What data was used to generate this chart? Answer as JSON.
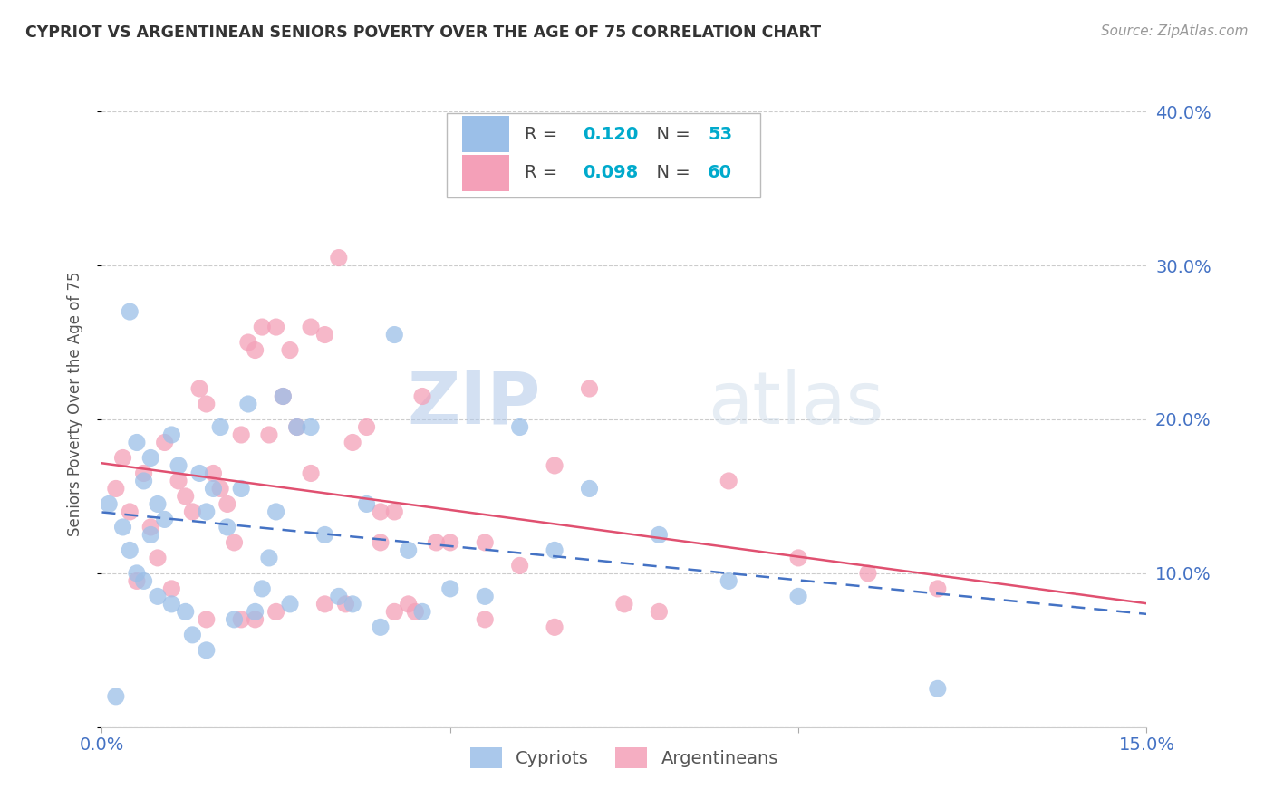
{
  "title": "CYPRIOT VS ARGENTINEAN SENIORS POVERTY OVER THE AGE OF 75 CORRELATION CHART",
  "source": "Source: ZipAtlas.com",
  "ylabel": "Seniors Poverty Over the Age of 75",
  "xlim": [
    0.0,
    0.15
  ],
  "ylim": [
    0.0,
    0.42
  ],
  "cypriot_R": 0.12,
  "cypriot_N": 53,
  "argentinean_R": 0.098,
  "argentinean_N": 60,
  "cypriot_color": "#9bbfe8",
  "argentinean_color": "#f4a0b8",
  "trend_cypriot_color": "#4472c4",
  "trend_argentinean_color": "#e05070",
  "background_color": "#ffffff",
  "grid_color": "#cccccc",
  "axis_label_color": "#4472c4",
  "watermark_zip": "ZIP",
  "watermark_atlas": "atlas",
  "cypriot_x": [
    0.001,
    0.002,
    0.003,
    0.004,
    0.004,
    0.005,
    0.005,
    0.006,
    0.006,
    0.007,
    0.007,
    0.008,
    0.008,
    0.009,
    0.01,
    0.01,
    0.011,
    0.012,
    0.013,
    0.014,
    0.015,
    0.015,
    0.016,
    0.017,
    0.018,
    0.019,
    0.02,
    0.021,
    0.022,
    0.023,
    0.024,
    0.025,
    0.026,
    0.027,
    0.028,
    0.03,
    0.032,
    0.034,
    0.036,
    0.038,
    0.04,
    0.042,
    0.044,
    0.046,
    0.05,
    0.055,
    0.06,
    0.065,
    0.07,
    0.08,
    0.09,
    0.1,
    0.12
  ],
  "cypriot_y": [
    0.145,
    0.02,
    0.13,
    0.115,
    0.27,
    0.1,
    0.185,
    0.16,
    0.095,
    0.175,
    0.125,
    0.085,
    0.145,
    0.135,
    0.08,
    0.19,
    0.17,
    0.075,
    0.06,
    0.165,
    0.05,
    0.14,
    0.155,
    0.195,
    0.13,
    0.07,
    0.155,
    0.21,
    0.075,
    0.09,
    0.11,
    0.14,
    0.215,
    0.08,
    0.195,
    0.195,
    0.125,
    0.085,
    0.08,
    0.145,
    0.065,
    0.255,
    0.115,
    0.075,
    0.09,
    0.085,
    0.195,
    0.115,
    0.155,
    0.125,
    0.095,
    0.085,
    0.025
  ],
  "argentinean_x": [
    0.002,
    0.003,
    0.004,
    0.005,
    0.006,
    0.007,
    0.008,
    0.009,
    0.01,
    0.011,
    0.012,
    0.013,
    0.014,
    0.015,
    0.016,
    0.017,
    0.018,
    0.019,
    0.02,
    0.021,
    0.022,
    0.023,
    0.024,
    0.025,
    0.026,
    0.027,
    0.028,
    0.03,
    0.032,
    0.034,
    0.036,
    0.038,
    0.04,
    0.042,
    0.044,
    0.046,
    0.048,
    0.05,
    0.055,
    0.06,
    0.065,
    0.07,
    0.075,
    0.08,
    0.09,
    0.1,
    0.11,
    0.12,
    0.04,
    0.03,
    0.025,
    0.035,
    0.045,
    0.055,
    0.065,
    0.02,
    0.015,
    0.022,
    0.032,
    0.042
  ],
  "argentinean_y": [
    0.155,
    0.175,
    0.14,
    0.095,
    0.165,
    0.13,
    0.11,
    0.185,
    0.09,
    0.16,
    0.15,
    0.14,
    0.22,
    0.21,
    0.165,
    0.155,
    0.145,
    0.12,
    0.19,
    0.25,
    0.245,
    0.26,
    0.19,
    0.26,
    0.215,
    0.245,
    0.195,
    0.26,
    0.255,
    0.305,
    0.185,
    0.195,
    0.12,
    0.14,
    0.08,
    0.215,
    0.12,
    0.12,
    0.12,
    0.105,
    0.17,
    0.22,
    0.08,
    0.075,
    0.16,
    0.11,
    0.1,
    0.09,
    0.14,
    0.165,
    0.075,
    0.08,
    0.075,
    0.07,
    0.065,
    0.07,
    0.07,
    0.07,
    0.08,
    0.075
  ]
}
